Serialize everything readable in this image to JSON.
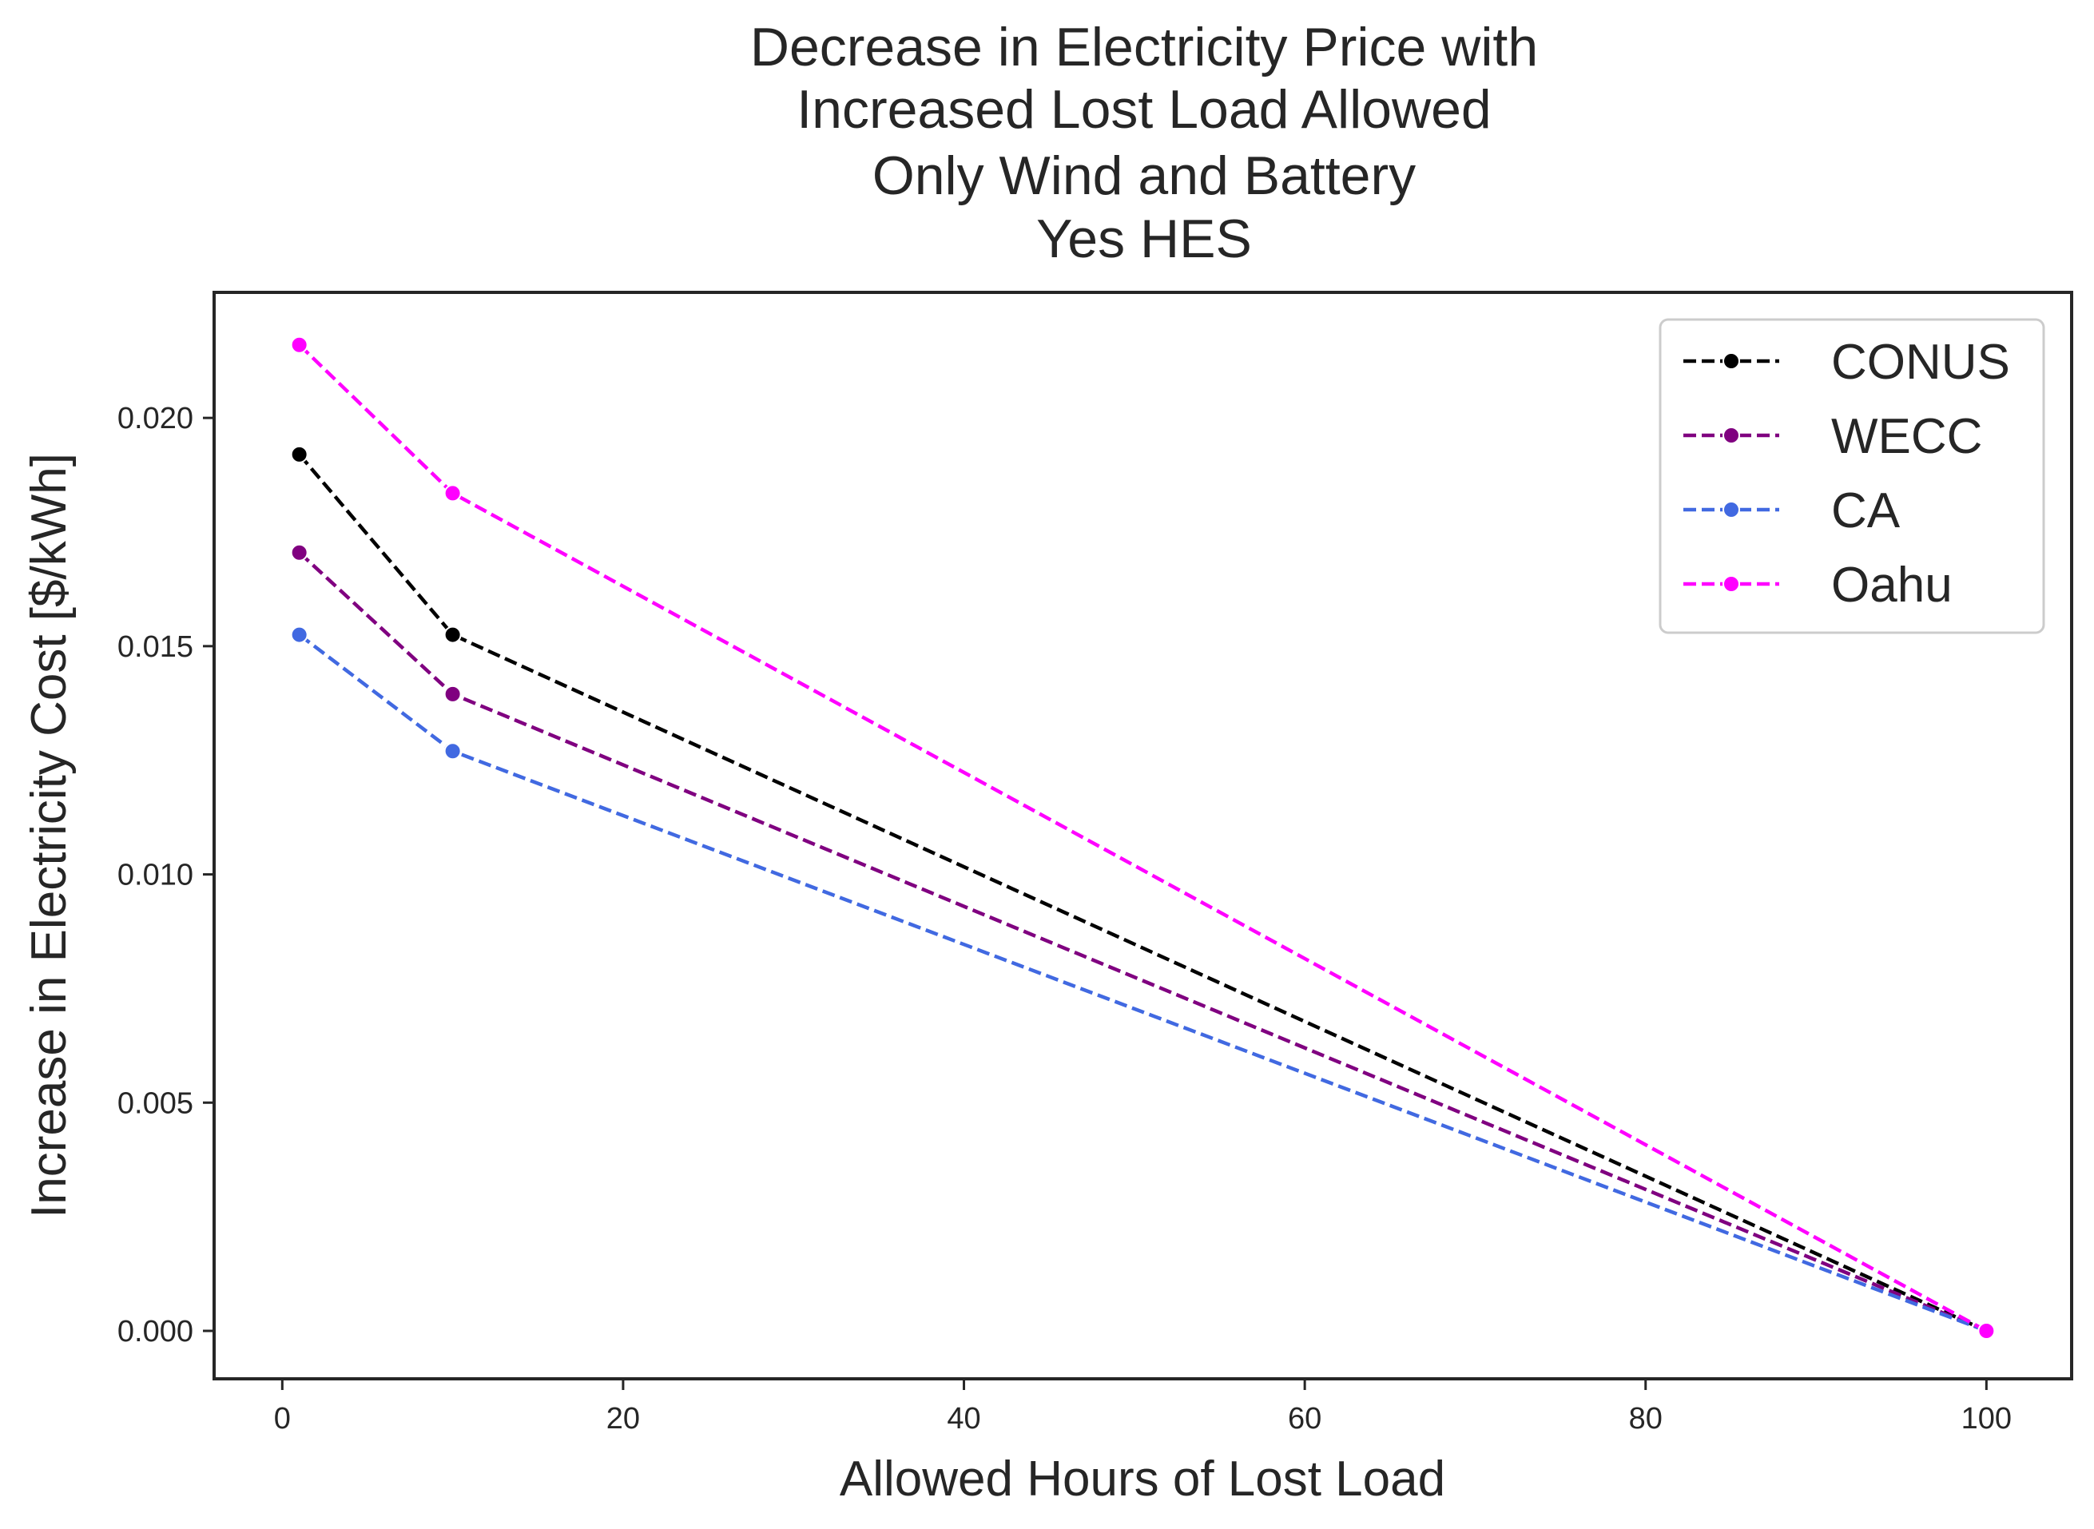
{
  "chart_data": {
    "type": "line",
    "title_lines": [
      "Decrease in Electricity Price with",
      "Increased Lost Load Allowed",
      "Only Wind and Battery",
      "Yes HES"
    ],
    "xlabel": "Allowed Hours of Lost Load",
    "ylabel": "Increase in Electricity Cost [$/kWh]",
    "xlim": [
      -4,
      105
    ],
    "ylim": [
      -0.00105,
      0.02275
    ],
    "xticks": [
      0,
      20,
      40,
      60,
      80,
      100
    ],
    "xtick_labels": [
      "0",
      "20",
      "40",
      "60",
      "80",
      "100"
    ],
    "yticks": [
      0.0,
      0.005,
      0.01,
      0.015,
      0.02
    ],
    "ytick_labels": [
      "0.000",
      "0.005",
      "0.010",
      "0.015",
      "0.020"
    ],
    "x": [
      1,
      10,
      100
    ],
    "series": [
      {
        "name": "CONUS",
        "color": "#000000",
        "values": [
          0.0192,
          0.01525,
          0.0
        ]
      },
      {
        "name": "WECC",
        "color": "#800080",
        "values": [
          0.01705,
          0.01395,
          0.0
        ]
      },
      {
        "name": "CA",
        "color": "#4169E1",
        "values": [
          0.01525,
          0.0127,
          0.0
        ]
      },
      {
        "name": "Oahu",
        "color": "#FF00FF",
        "values": [
          0.0216,
          0.01835,
          0.0
        ]
      }
    ],
    "line_style": "dashed",
    "marker": "circle",
    "grid": false,
    "legend_position": "top-right"
  }
}
